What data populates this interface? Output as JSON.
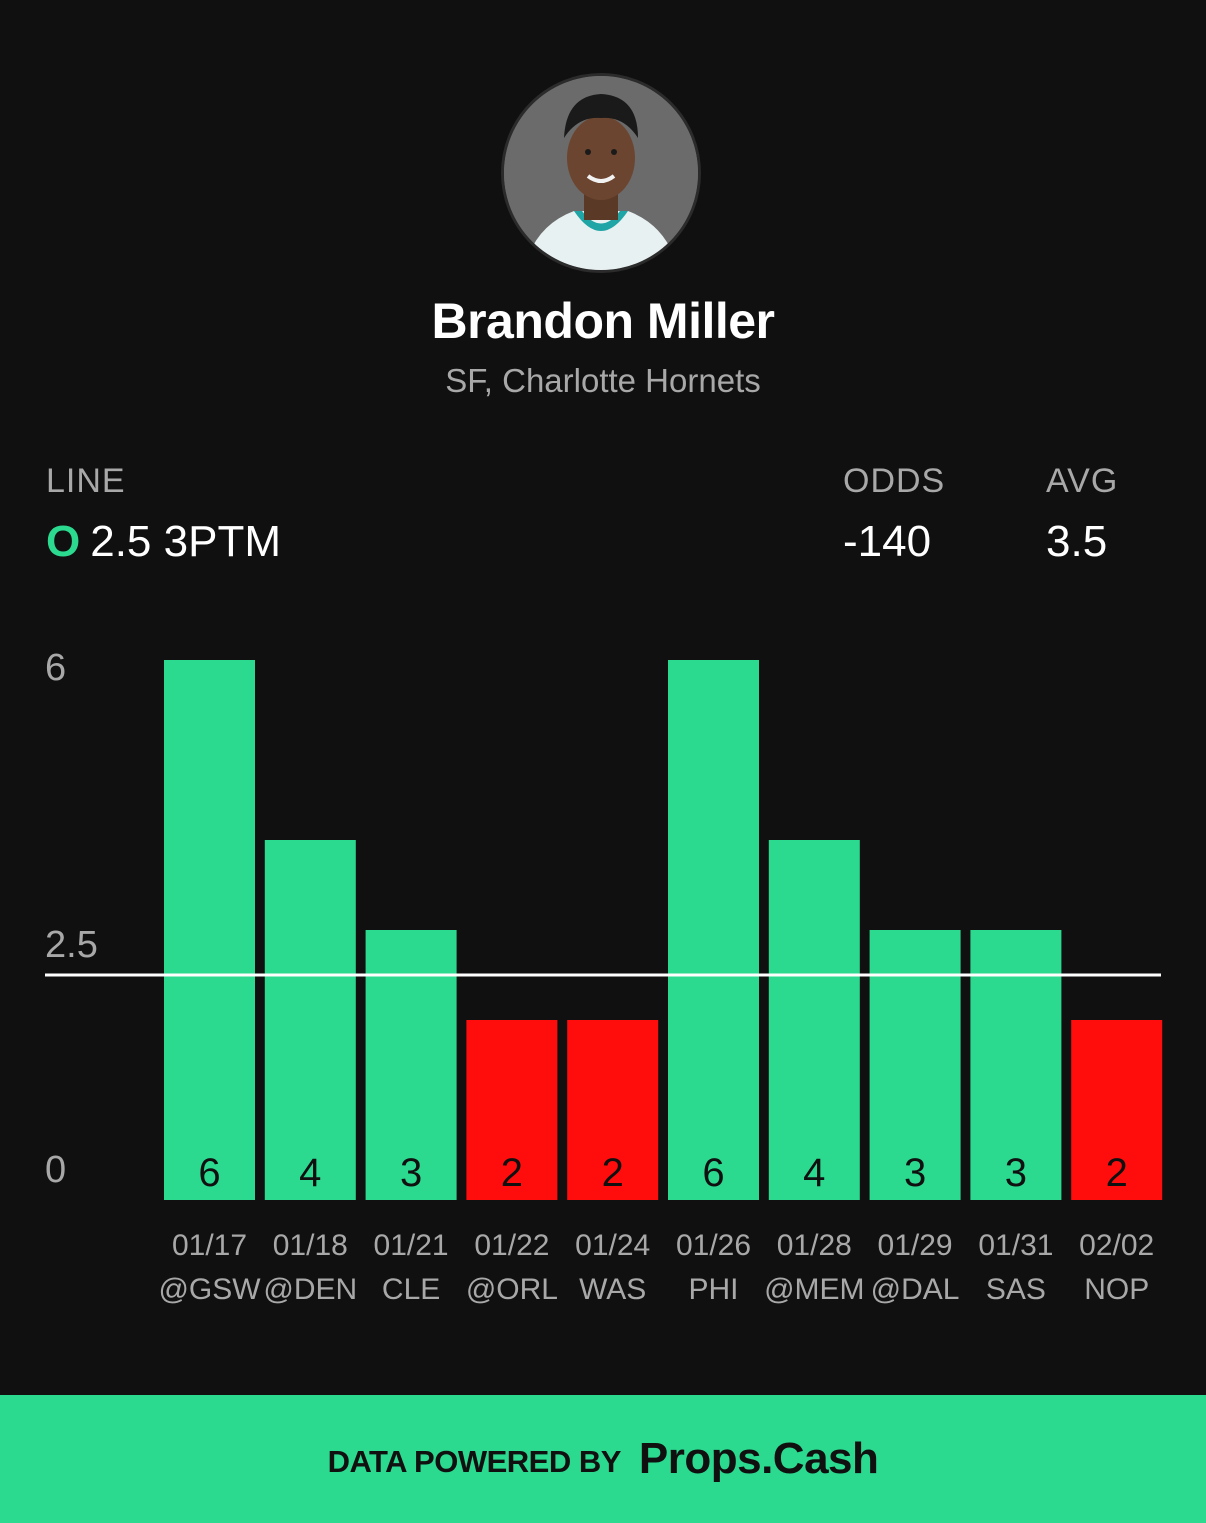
{
  "player": {
    "name": "Brandon Miller",
    "subtitle": "SF, Charlotte Hornets"
  },
  "stats": {
    "line_label": "LINE",
    "line_side": "O",
    "line_value": "2.5 3PTM",
    "odds_label": "ODDS",
    "odds_value": "-140",
    "avg_label": "AVG",
    "avg_value": "3.5"
  },
  "colors": {
    "over": "#2bd98f",
    "under": "#ff0d0d",
    "background": "#101010"
  },
  "chart_data": {
    "type": "bar",
    "categories": [
      {
        "date": "01/17",
        "opponent": "@GSW"
      },
      {
        "date": "01/18",
        "opponent": "@DEN"
      },
      {
        "date": "01/21",
        "opponent": "CLE"
      },
      {
        "date": "01/22",
        "opponent": "@ORL"
      },
      {
        "date": "01/24",
        "opponent": "WAS"
      },
      {
        "date": "01/26",
        "opponent": "PHI"
      },
      {
        "date": "01/28",
        "opponent": "@MEM"
      },
      {
        "date": "01/29",
        "opponent": "@DAL"
      },
      {
        "date": "01/31",
        "opponent": "SAS"
      },
      {
        "date": "02/02",
        "opponent": "NOP"
      }
    ],
    "values": [
      6,
      4,
      3,
      2,
      2,
      6,
      4,
      3,
      3,
      2
    ],
    "line": 2.5,
    "yticks": [
      "6",
      "2.5",
      "0"
    ],
    "ylim": [
      0,
      6
    ]
  },
  "footer": {
    "text": "DATA POWERED BY",
    "brand": "Props.Cash"
  }
}
